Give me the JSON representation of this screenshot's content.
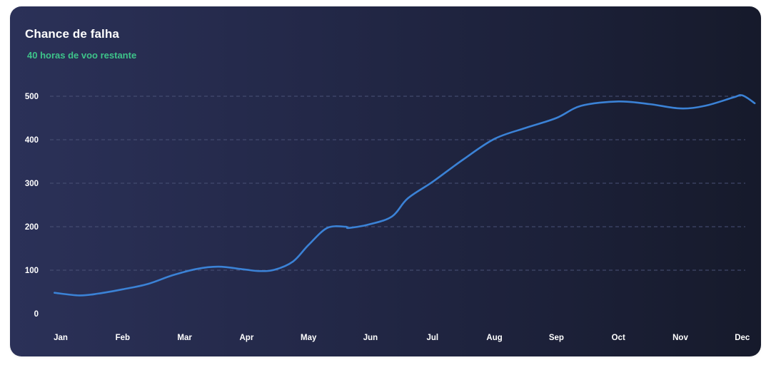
{
  "card": {
    "title": "Chance de falha",
    "subtitle": "40 horas de voo restante"
  },
  "colors": {
    "line": "#3b82d6",
    "subtitle": "#3ec48a",
    "grid": "#4a5277"
  },
  "chart_data": {
    "type": "line",
    "title": "Chance de falha",
    "subtitle": "40 horas de voo restante",
    "xlabel": "",
    "ylabel": "",
    "categories": [
      "Jan",
      "Feb",
      "Mar",
      "Apr",
      "May",
      "Jun",
      "Jul",
      "Aug",
      "Sep",
      "Oct",
      "Nov",
      "Dec"
    ],
    "yticks": [
      0,
      100,
      200,
      300,
      400,
      500
    ],
    "ylim": [
      0,
      500
    ],
    "grid": true,
    "legend": "none",
    "series": [
      {
        "x": [
          -0.1,
          0.3,
          0.6,
          1.0,
          1.4,
          1.8,
          2.2,
          2.55,
          2.95,
          3.2,
          3.45,
          3.75,
          4.0,
          4.3,
          4.6,
          4.65,
          5.0,
          5.35,
          5.6,
          6.0,
          6.5,
          7.0,
          7.5,
          8.0,
          8.4,
          9.0,
          9.5,
          10.0,
          10.4,
          10.85,
          11.0,
          11.2
        ],
        "values": [
          48,
          42,
          46,
          56,
          68,
          88,
          103,
          108,
          102,
          98,
          101,
          120,
          158,
          197,
          200,
          197,
          206,
          224,
          265,
          303,
          355,
          402,
          427,
          450,
          478,
          488,
          482,
          472,
          478,
          497,
          502,
          484
        ]
      }
    ]
  }
}
